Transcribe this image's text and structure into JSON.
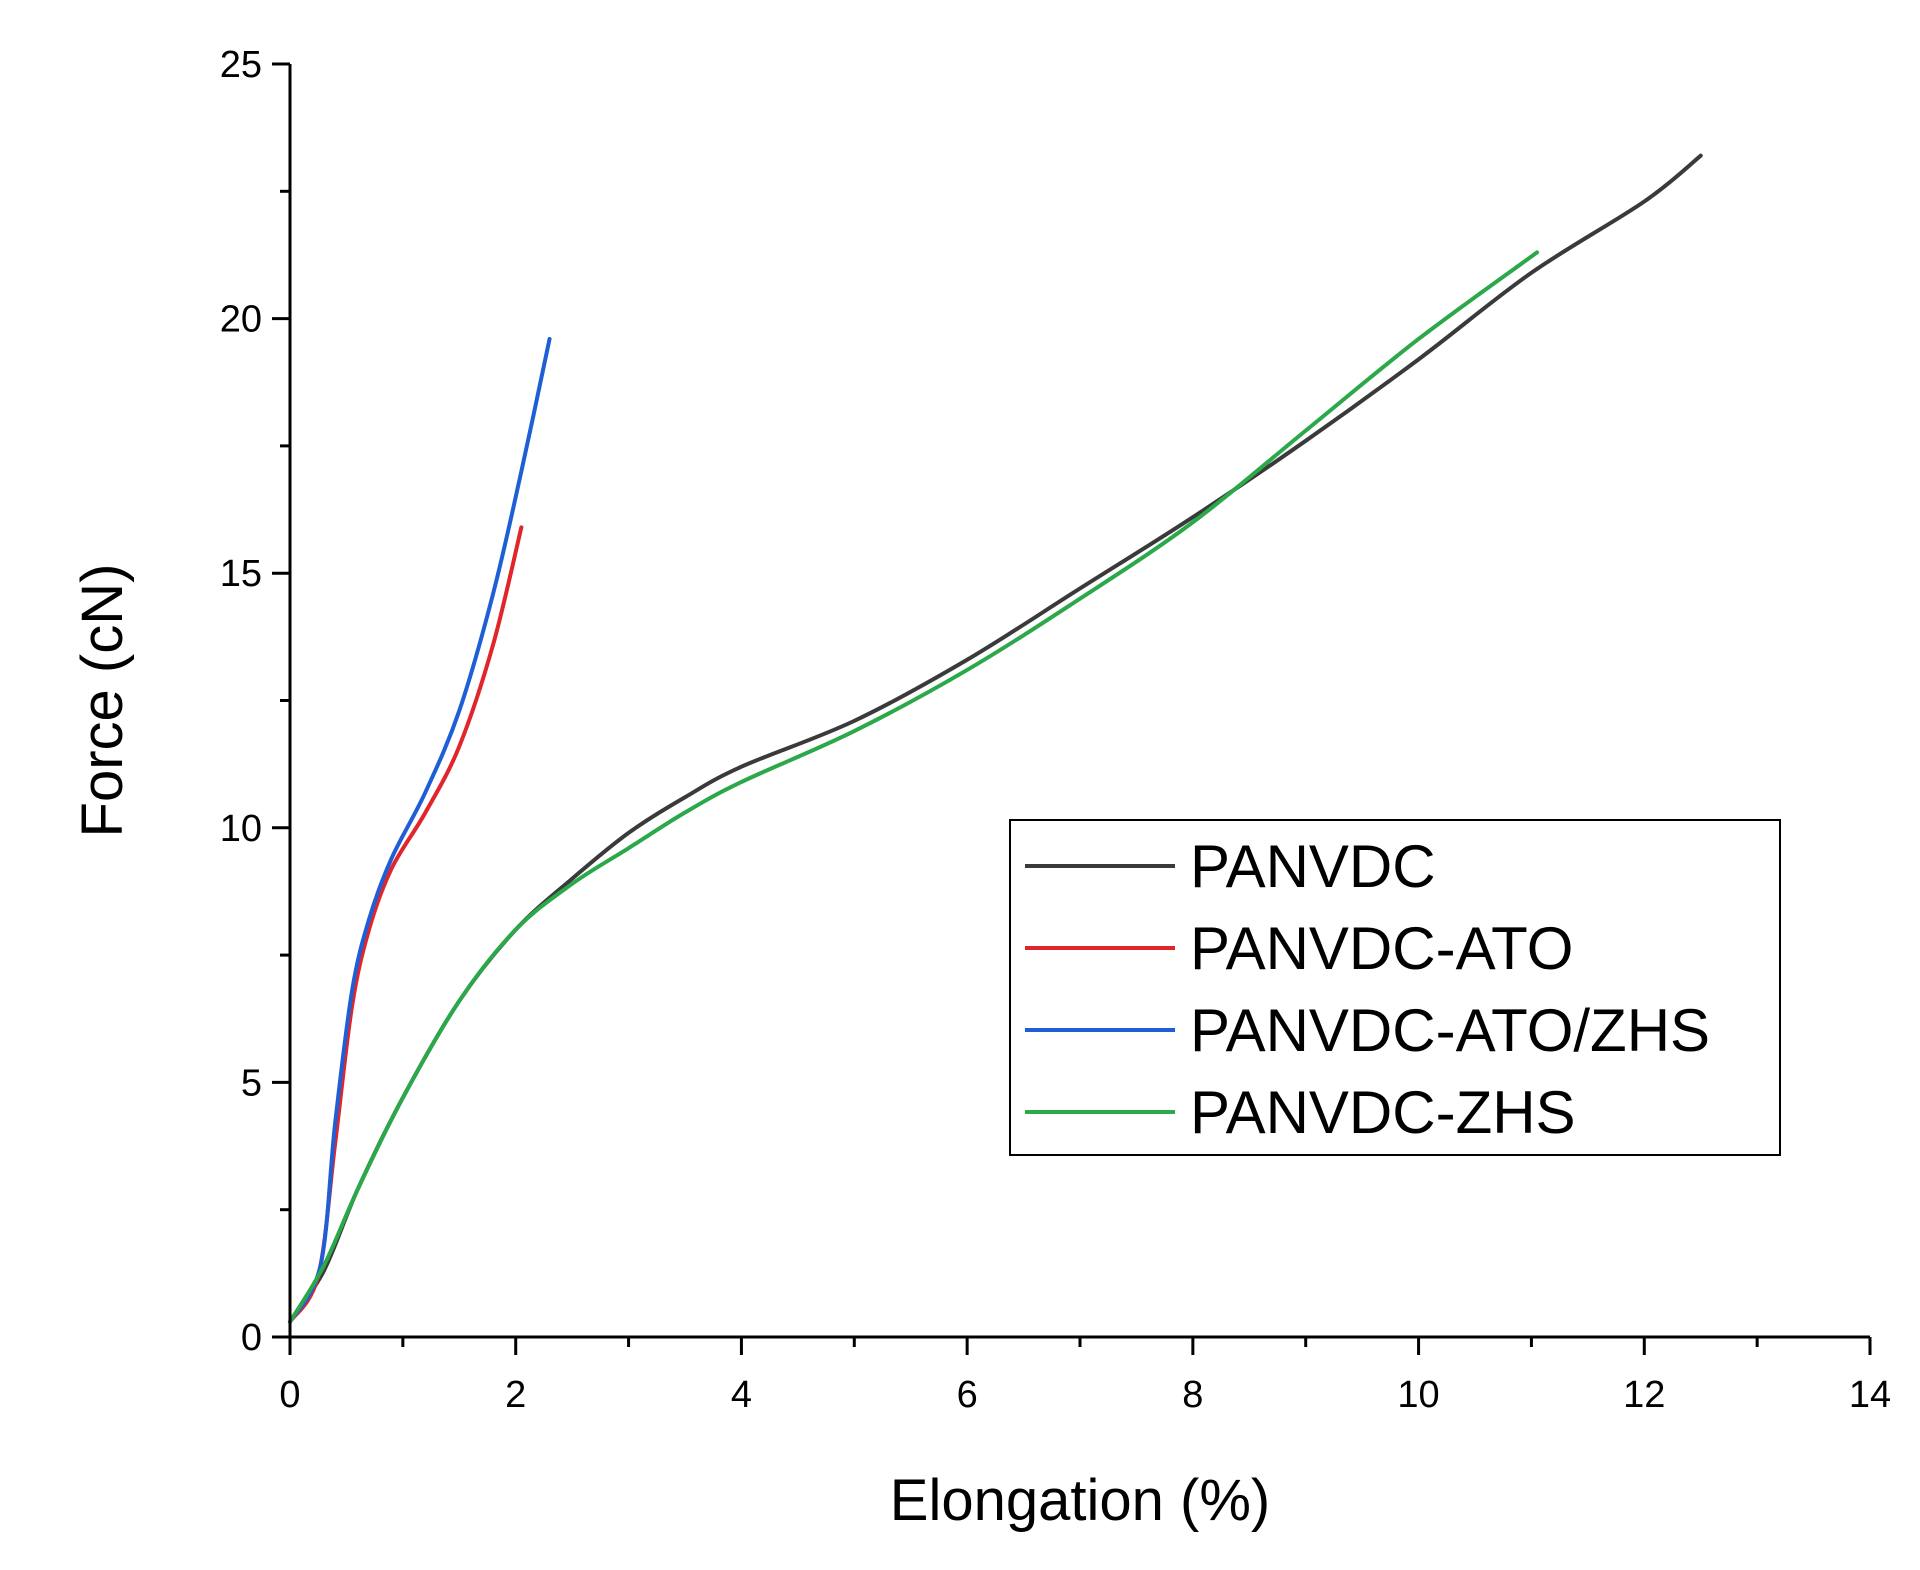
{
  "chart_data": {
    "type": "line",
    "title": "",
    "xlabel": "Elongation (%)",
    "ylabel": "Force (cN)",
    "xlim": [
      0,
      14
    ],
    "ylim": [
      0,
      25
    ],
    "xticks": [
      0,
      2,
      4,
      6,
      8,
      10,
      12,
      14
    ],
    "yticks": [
      0,
      5,
      10,
      15,
      20,
      25
    ],
    "x_minor_step": 1,
    "y_minor_step": 2.5,
    "grid": false,
    "legend_position": "right-middle",
    "series": [
      {
        "name": "PANVDC",
        "color": "#3a3a3a",
        "points": [
          [
            0,
            0.3
          ],
          [
            0.3,
            1.3
          ],
          [
            0.6,
            2.9
          ],
          [
            1.0,
            4.7
          ],
          [
            1.5,
            6.6
          ],
          [
            2.0,
            8.0
          ],
          [
            2.5,
            9.0
          ],
          [
            3.0,
            9.9
          ],
          [
            3.5,
            10.6
          ],
          [
            4.0,
            11.2
          ],
          [
            5.0,
            12.1
          ],
          [
            6.0,
            13.3
          ],
          [
            7.0,
            14.7
          ],
          [
            8.0,
            16.1
          ],
          [
            9.0,
            17.6
          ],
          [
            10.0,
            19.2
          ],
          [
            11.0,
            20.9
          ],
          [
            12.0,
            22.3
          ],
          [
            12.5,
            23.2
          ]
        ]
      },
      {
        "name": "PANVDC-ATO",
        "color": "#e0252b",
        "points": [
          [
            0,
            0.3
          ],
          [
            0.25,
            1.2
          ],
          [
            0.4,
            3.8
          ],
          [
            0.55,
            6.5
          ],
          [
            0.7,
            8.0
          ],
          [
            0.9,
            9.2
          ],
          [
            1.2,
            10.3
          ],
          [
            1.5,
            11.6
          ],
          [
            1.8,
            13.6
          ],
          [
            2.05,
            15.9
          ]
        ]
      },
      {
        "name": "PANVDC-ATO/ZHS",
        "color": "#1f5fd6",
        "points": [
          [
            0,
            0.3
          ],
          [
            0.27,
            1.4
          ],
          [
            0.4,
            4.2
          ],
          [
            0.55,
            6.8
          ],
          [
            0.7,
            8.2
          ],
          [
            0.9,
            9.4
          ],
          [
            1.2,
            10.7
          ],
          [
            1.5,
            12.3
          ],
          [
            1.8,
            14.6
          ],
          [
            2.05,
            17.0
          ],
          [
            2.3,
            19.6
          ]
        ]
      },
      {
        "name": "PANVDC-ZHS",
        "color": "#2aa84a",
        "points": [
          [
            0,
            0.3
          ],
          [
            0.3,
            1.4
          ],
          [
            0.6,
            2.9
          ],
          [
            1.0,
            4.7
          ],
          [
            1.5,
            6.6
          ],
          [
            2.0,
            8.0
          ],
          [
            2.5,
            8.9
          ],
          [
            3.0,
            9.6
          ],
          [
            3.5,
            10.3
          ],
          [
            4.0,
            10.9
          ],
          [
            5.0,
            11.9
          ],
          [
            6.0,
            13.1
          ],
          [
            7.0,
            14.5
          ],
          [
            8.0,
            16.0
          ],
          [
            9.0,
            17.8
          ],
          [
            10.0,
            19.6
          ],
          [
            11.05,
            21.3
          ]
        ]
      }
    ]
  }
}
